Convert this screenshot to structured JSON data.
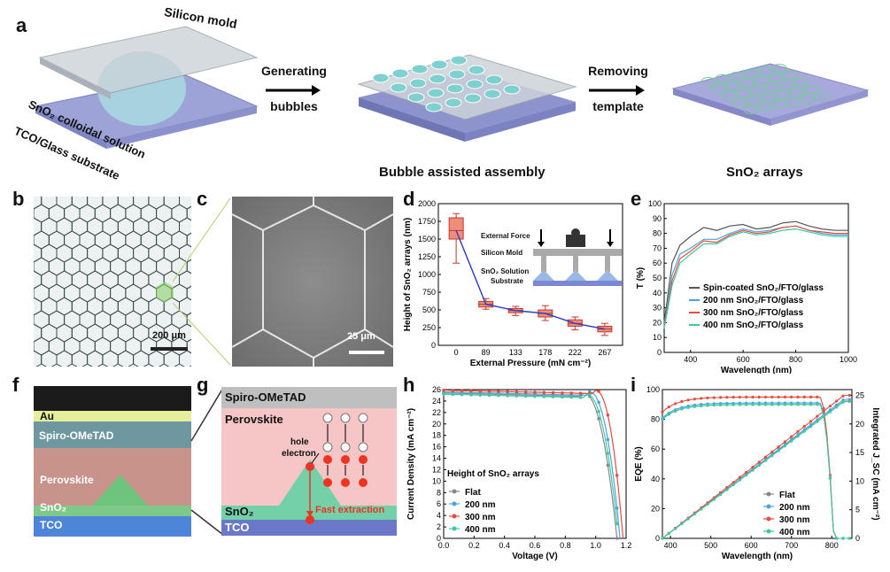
{
  "panel_labels": {
    "a": "a",
    "b": "b",
    "c": "c",
    "d": "d",
    "e": "e",
    "f": "f",
    "g": "g",
    "h": "h",
    "i": "i"
  },
  "schematic": {
    "silicon_mold": "Silicon mold",
    "sno2_colloidal": "SnO₂ colloidal solution",
    "tco_glass": "TCO/Glass substrate",
    "arrow1_line1": "Generating",
    "arrow1_line2": "bubbles",
    "arrow2_line1": "Removing",
    "arrow2_line2": "template",
    "caption_mid": "Bubble assisted assembly",
    "caption_right": "SnO₂ arrays"
  },
  "micro": {
    "scale_b": "200 μm",
    "scale_c": "25 μm"
  },
  "cross_section": {
    "au": "Au",
    "spiro": "Spiro-OMeTAD",
    "perovskite": "Perovskite",
    "sno2": "SnO₂",
    "tco": "TCO"
  },
  "band": {
    "spiro": "Spiro-OMeTAD",
    "perovskite": "Perovskite",
    "hole": "hole",
    "electron": "electron",
    "fast": "Fast extraction",
    "sno2": "SnO₂",
    "tco": "TCO"
  },
  "inset_d": {
    "force": "External Force",
    "mold": "Silicon Mold",
    "solution": "SnO₂ Solution",
    "substrate": "Substrate"
  },
  "chart_data": [
    {
      "id": "d",
      "type": "box",
      "xlabel": "External Pressure (mN cm⁻²)",
      "ylabel": "Height of SnO₂ arrays (nm)",
      "ylim": [
        0,
        2000
      ],
      "yticks": [
        0,
        250,
        500,
        750,
        1000,
        1250,
        1500,
        1750,
        2000
      ],
      "categories": [
        "0",
        "89",
        "133",
        "178",
        "222",
        "267"
      ],
      "medians": [
        1620,
        580,
        490,
        450,
        310,
        230
      ],
      "q1": [
        1500,
        540,
        460,
        400,
        270,
        190
      ],
      "q3": [
        1800,
        620,
        520,
        500,
        360,
        270
      ],
      "whisker_low": [
        1160,
        510,
        420,
        350,
        220,
        140
      ],
      "whisker_high": [
        1860,
        660,
        550,
        560,
        400,
        310
      ]
    },
    {
      "id": "e",
      "type": "line",
      "xlabel": "Wavelength (nm)",
      "ylabel": "T (%)",
      "xlim": [
        300,
        1000
      ],
      "ylim": [
        0,
        100
      ],
      "xticks": [
        400,
        600,
        800,
        1000
      ],
      "yticks": [
        0,
        10,
        20,
        30,
        40,
        50,
        60,
        70,
        80,
        90,
        100
      ],
      "x": [
        300,
        330,
        360,
        400,
        450,
        500,
        550,
        600,
        650,
        700,
        750,
        800,
        850,
        900,
        950,
        1000
      ],
      "series": [
        {
          "name": "Spin-coated SnO₂/FTO/glass",
          "color": "#555555",
          "values": [
            20,
            60,
            72,
            78,
            84,
            82,
            85,
            86,
            83,
            84,
            87,
            88,
            85,
            83,
            82,
            82
          ]
        },
        {
          "name": "200 nm SnO₂/FTO/glass",
          "color": "#4aa3df",
          "values": [
            18,
            52,
            66,
            70,
            76,
            76,
            80,
            83,
            81,
            82,
            84,
            85,
            82,
            80,
            79,
            79
          ]
        },
        {
          "name": "300 nm SnO₂/FTO/glass",
          "color": "#e74c3c",
          "values": [
            17,
            48,
            63,
            68,
            75,
            74,
            79,
            82,
            80,
            81,
            84,
            85,
            82,
            81,
            80,
            80
          ]
        },
        {
          "name": "400 nm SnO₂/FTO/glass",
          "color": "#3cc9a4",
          "values": [
            16,
            45,
            60,
            66,
            73,
            73,
            78,
            81,
            79,
            80,
            82,
            83,
            81,
            79,
            78,
            78
          ]
        }
      ]
    },
    {
      "id": "h",
      "type": "line",
      "title": "Height of SnO₂ arrays",
      "xlabel": "Voltage (V)",
      "ylabel": "Current Density (mA cm⁻²)",
      "xlim": [
        0,
        1.2
      ],
      "ylim": [
        0,
        26
      ],
      "xticks": [
        0.0,
        0.2,
        0.4,
        0.6,
        0.8,
        1.0,
        1.2
      ],
      "yticks": [
        0,
        2,
        4,
        6,
        8,
        10,
        12,
        14,
        16,
        18,
        20,
        22,
        24,
        26
      ],
      "series": [
        {
          "name": "Flat",
          "color": "#888888",
          "jsc": 25.4,
          "voc": 1.14,
          "knee": 0.92
        },
        {
          "name": "200 nm",
          "color": "#4aa3df",
          "jsc": 25.6,
          "voc": 1.16,
          "knee": 0.96
        },
        {
          "name": "300 nm",
          "color": "#e74c3c",
          "jsc": 25.9,
          "voc": 1.18,
          "knee": 1.0
        },
        {
          "name": "400 nm",
          "color": "#3cc9a4",
          "jsc": 25.2,
          "voc": 1.15,
          "knee": 0.94
        }
      ]
    },
    {
      "id": "i",
      "type": "line",
      "xlabel": "Wavelength (nm)",
      "ylabel": "EQE (%)",
      "ylabel_right": "Integrated J_SC (mA cm⁻²)",
      "xlim": [
        380,
        850
      ],
      "ylim": [
        0,
        100
      ],
      "ylim_right": [
        0,
        26
      ],
      "xticks": [
        400,
        500,
        600,
        700,
        800
      ],
      "yticks": [
        0,
        20,
        40,
        60,
        80,
        100
      ],
      "yticks_right": [
        0,
        5,
        10,
        15,
        20,
        25
      ],
      "series": [
        {
          "name": "Flat",
          "color": "#888888",
          "eqe_peak": 90,
          "jsc_end": 24.0
        },
        {
          "name": "200 nm",
          "color": "#4aa3df",
          "eqe_peak": 91,
          "jsc_end": 24.3
        },
        {
          "name": "300 nm",
          "color": "#e74c3c",
          "eqe_peak": 95,
          "jsc_end": 25.0
        },
        {
          "name": "400 nm",
          "color": "#3cc9a4",
          "eqe_peak": 90,
          "jsc_end": 23.9
        }
      ]
    }
  ]
}
